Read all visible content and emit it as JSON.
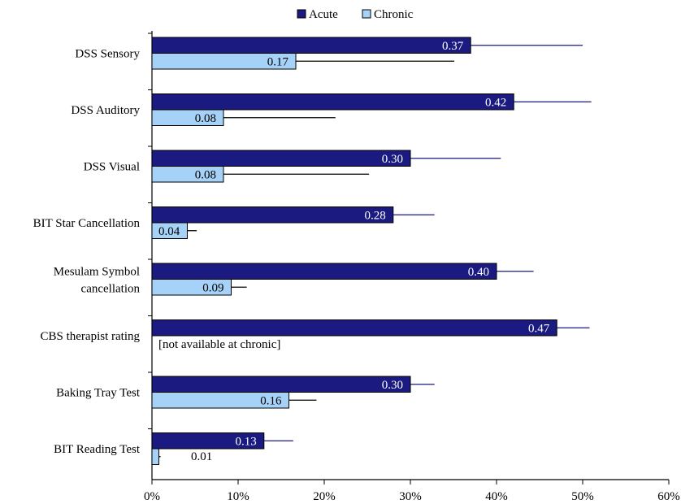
{
  "chart_data": {
    "type": "bar",
    "orientation": "horizontal",
    "categories": [
      [
        "DSS Sensory"
      ],
      [
        "DSS Auditory"
      ],
      [
        "DSS Visual"
      ],
      [
        "BIT Star Cancellation"
      ],
      [
        "Mesulam Symbol",
        "cancellation"
      ],
      [
        "CBS therapist rating"
      ],
      [
        "Baking Tray Test"
      ],
      [
        "BIT Reading Test"
      ]
    ],
    "series": [
      {
        "name": "Acute",
        "color": "#1a1a80",
        "values": [
          0.37,
          0.42,
          0.3,
          0.28,
          0.4,
          0.47,
          0.3,
          0.13
        ],
        "value_labels": [
          "0.37",
          "0.42",
          "0.30",
          "0.28",
          "0.40",
          "0.47",
          "0.30",
          "0.13"
        ],
        "error_upper": [
          0.5,
          0.51,
          0.405,
          0.328,
          0.443,
          0.508,
          0.328,
          0.164
        ]
      },
      {
        "name": "Chronic",
        "color": "#a6d2f7",
        "values": [
          0.167,
          0.083,
          0.083,
          0.041,
          0.092,
          null,
          0.159,
          0.008
        ],
        "value_labels": [
          "0.17",
          "0.08",
          "0.08",
          "0.04",
          "0.09",
          "",
          "0.16",
          "0.01"
        ],
        "error_upper": [
          0.351,
          0.213,
          0.252,
          0.052,
          0.11,
          null,
          0.191,
          0.01
        ]
      }
    ],
    "annotations": [
      "[not available at chronic]"
    ],
    "x_ticks": [
      "0%",
      "10%",
      "20%",
      "30%",
      "40%",
      "50%",
      "60%"
    ],
    "xlim": [
      0,
      0.6
    ],
    "legend": {
      "position": "top-center",
      "entries": [
        "Acute",
        "Chronic"
      ]
    },
    "title": "",
    "xlabel": "",
    "ylabel": "",
    "grid": false
  }
}
